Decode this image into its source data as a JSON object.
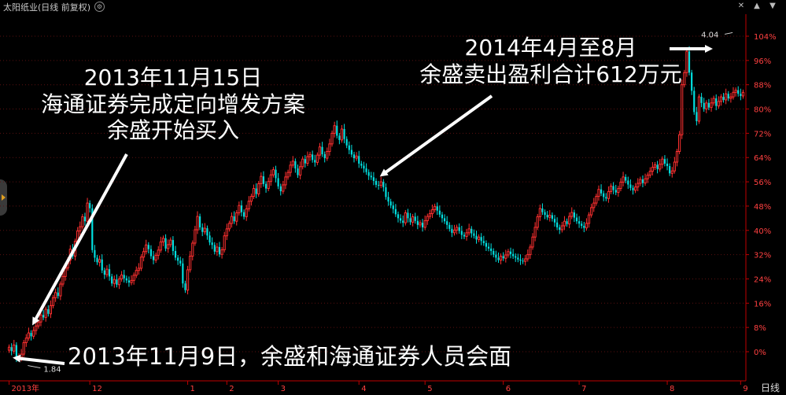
{
  "window": {
    "title": "太阳纸业(日线 前复权)",
    "period_label": "日线"
  },
  "annotations": {
    "a1": {
      "line1": "2013年11月15日",
      "line2": "海通证券完成定向增发方案",
      "line3": "余盛开始买入"
    },
    "a2": {
      "line1": "2014年4月至8月",
      "line2": "余盛卖出盈利合计612万元"
    },
    "a3": "2013年11月9日，余盛和海通证券人员会面"
  },
  "chart_data": {
    "type": "candlestick",
    "yaxis": {
      "position": "right",
      "format": "percent",
      "ylim": [
        -2,
        106
      ],
      "ticks": [
        0,
        8,
        16,
        24,
        32,
        40,
        48,
        56,
        64,
        72,
        80,
        88,
        96,
        104
      ],
      "tick_labels": [
        "0%",
        "8%",
        "16%",
        "24%",
        "32%",
        "40%",
        "48%",
        "56%",
        "64%",
        "72%",
        "80%",
        "88%",
        "96%",
        "104%"
      ]
    },
    "xaxis": {
      "labels": [
        {
          "label": "2013年",
          "at": 0
        },
        {
          "label": "12",
          "at": 33
        },
        {
          "label": "1",
          "at": 73
        },
        {
          "label": "2",
          "at": 89
        },
        {
          "label": "3",
          "at": 110
        },
        {
          "label": "4",
          "at": 143
        },
        {
          "label": "5",
          "at": 170
        },
        {
          "label": "6",
          "at": 202
        },
        {
          "label": "7",
          "at": 233
        },
        {
          "label": "8",
          "at": 269
        },
        {
          "label": "9",
          "at": 299
        }
      ]
    },
    "markers": [
      {
        "label": "4.04",
        "kind": "high",
        "at": 297,
        "value": 107
      },
      {
        "label": "1.84",
        "kind": "low",
        "at": 7,
        "value": -3
      }
    ],
    "grid": true,
    "colors": {
      "up": "#ff3030",
      "down": "#00e0e0",
      "axis": "#c00000",
      "grid": "#5a1010",
      "tick": "#ff4040"
    },
    "close": [
      1.5,
      0.2,
      2.2,
      -2.0,
      -1.8,
      -0.8,
      3.0,
      4.5,
      6.2,
      5.1,
      7.0,
      8.5,
      9.8,
      12.1,
      11.3,
      14.0,
      12.5,
      15.2,
      17.8,
      19.5,
      18.4,
      22.3,
      24.8,
      27.6,
      30.2,
      33.8,
      31.5,
      36.4,
      39.8,
      41.2,
      44.5,
      43.0,
      49.0,
      47.3,
      33.5,
      31.0,
      29.5,
      30.4,
      26.8,
      25.4,
      27.2,
      24.8,
      22.5,
      23.8,
      22.1,
      24.0,
      25.3,
      24.2,
      23.5,
      22.8,
      23.5,
      25.2,
      26.8,
      27.5,
      31.2,
      33.0,
      35.2,
      33.8,
      31.5,
      30.2,
      31.8,
      33.5,
      36.2,
      37.4,
      34.0,
      35.3,
      36.8,
      33.2,
      31.0,
      30.0,
      29.1,
      22.5,
      20.3,
      27.0,
      31.5,
      35.8,
      40.2,
      44.6,
      41.0,
      39.5,
      40.7,
      38.3,
      36.0,
      35.2,
      33.0,
      34.5,
      32.1,
      33.6,
      38.2,
      40.5,
      42.3,
      44.6,
      43.0,
      45.8,
      48.2,
      46.0,
      44.5,
      47.1,
      49.6,
      51.2,
      53.8,
      52.0,
      55.4,
      57.8,
      55.3,
      53.8,
      56.1,
      58.3,
      60.0,
      57.2,
      54.5,
      52.9,
      55.0,
      57.6,
      59.1,
      61.5,
      62.8,
      60.4,
      58.2,
      61.0,
      63.5,
      62.1,
      64.3,
      65.0,
      63.2,
      62.4,
      64.8,
      67.5,
      65.1,
      63.8,
      66.0,
      68.5,
      72.0,
      74.5,
      71.2,
      69.8,
      73.4,
      70.1,
      68.0,
      66.5,
      65.0,
      63.8,
      64.5,
      62.0,
      61.3,
      60.4,
      59.2,
      58.0,
      57.5,
      56.3,
      55.0,
      54.8,
      56.0,
      54.2,
      51.0,
      49.5,
      48.2,
      47.0,
      45.3,
      44.0,
      43.2,
      42.5,
      45.8,
      44.0,
      42.7,
      44.5,
      43.1,
      41.8,
      42.5,
      41.0,
      43.2,
      44.6,
      45.5,
      46.8,
      47.9,
      46.5,
      45.2,
      44.0,
      43.0,
      41.8,
      40.5,
      39.2,
      40.1,
      41.0,
      39.8,
      38.5,
      38.0,
      39.2,
      40.5,
      39.0,
      38.2,
      37.0,
      37.8,
      36.5,
      35.8,
      34.6,
      34.0,
      33.2,
      32.0,
      31.0,
      30.2,
      31.5,
      30.8,
      31.9,
      33.0,
      32.2,
      31.5,
      31.0,
      30.4,
      30.0,
      29.8,
      30.6,
      32.0,
      34.5,
      37.8,
      41.0,
      44.5,
      47.2,
      46.0,
      45.1,
      44.3,
      45.0,
      43.8,
      42.6,
      41.0,
      40.2,
      41.5,
      43.0,
      42.1,
      44.6,
      45.9,
      44.2,
      43.0,
      42.2,
      41.5,
      40.8,
      42.3,
      45.1,
      47.5,
      49.0,
      51.2,
      53.5,
      52.2,
      51.0,
      50.5,
      52.8,
      54.6,
      53.3,
      52.5,
      53.8,
      55.9,
      57.6,
      56.4,
      55.1,
      54.0,
      53.2,
      54.3,
      55.5,
      56.8,
      55.6,
      57.0,
      58.2,
      59.5,
      60.8,
      61.6,
      60.2,
      61.8,
      63.5,
      62.0,
      61.2,
      58.8,
      59.6,
      62.5,
      66.0,
      71.5,
      88.0,
      92.0,
      99.0,
      92.0,
      86.0,
      79.0,
      76.0,
      84.0,
      82.0,
      80.0,
      82.0,
      80.5,
      82.0,
      83.5,
      81.0,
      82.5,
      84.0,
      83.0,
      85.0,
      83.5,
      84.0,
      85.5,
      86.2,
      85.0,
      84.3,
      85.5
    ]
  }
}
